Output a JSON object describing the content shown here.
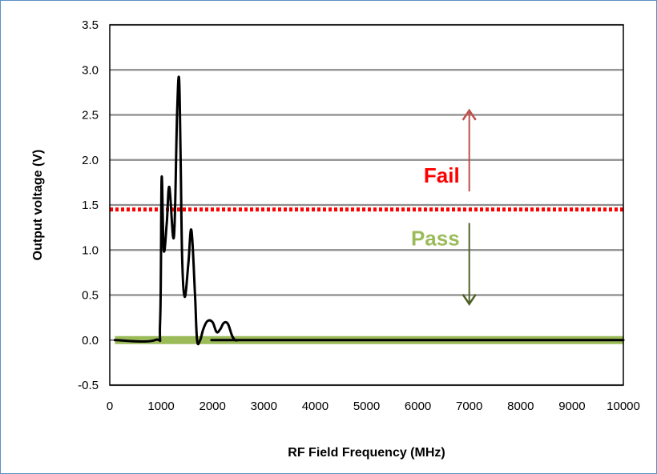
{
  "chart_data": {
    "type": "line",
    "xlabel": "RF Field Frequency (MHz)",
    "ylabel": "Output voltage (V)",
    "xlim": [
      0,
      10000
    ],
    "ylim": [
      -0.5,
      3.5
    ],
    "x_ticks": [
      "0",
      "1000",
      "2000",
      "3000",
      "4000",
      "5000",
      "6000",
      "7000",
      "8000",
      "9000",
      "10000"
    ],
    "y_ticks": [
      "3.5",
      "3.0",
      "2.5",
      "2.0",
      "1.5",
      "1.0",
      "0.5",
      "0.0",
      "-0.5"
    ],
    "grid": true,
    "series": [
      {
        "color": "#000000",
        "x": [
          100,
          880,
          980,
          1010,
          1050,
          1110,
          1160,
          1250,
          1310,
          1350,
          1380,
          1410,
          1460,
          1530,
          1590,
          1660,
          1700,
          1760,
          1820,
          1900,
          2000,
          2080,
          2150,
          2220,
          2300,
          2380,
          2440,
          2500,
          2600,
          10000
        ],
        "y": [
          0.0,
          0.0,
          0.2,
          1.8,
          1.0,
          1.3,
          1.7,
          1.15,
          2.5,
          2.9,
          2.0,
          0.9,
          0.48,
          0.85,
          1.22,
          0.5,
          0.0,
          0.0,
          0.12,
          0.21,
          0.2,
          0.09,
          0.12,
          0.19,
          0.18,
          0.05,
          0.0,
          0.0,
          0.0,
          0.0
        ]
      }
    ],
    "baseline_band": {
      "color": "#9bbb59",
      "y": 0.0,
      "x_range": [
        100,
        10000
      ]
    },
    "threshold": {
      "y": 1.45,
      "color": "#ff0000",
      "style": "dotted"
    },
    "annotations": [
      {
        "text": "Fail",
        "color": "#ff0000",
        "x": 7000,
        "y": 1.75
      },
      {
        "text": "Pass",
        "color": "#9bbb59",
        "x": 7000,
        "y": 1.05
      }
    ],
    "arrows": [
      {
        "x": 7000,
        "y_from": 1.65,
        "y_to": 2.55,
        "color": "#c0504d"
      },
      {
        "x": 7000,
        "y_from": 1.3,
        "y_to": 0.4,
        "color": "#4f6228"
      }
    ]
  }
}
